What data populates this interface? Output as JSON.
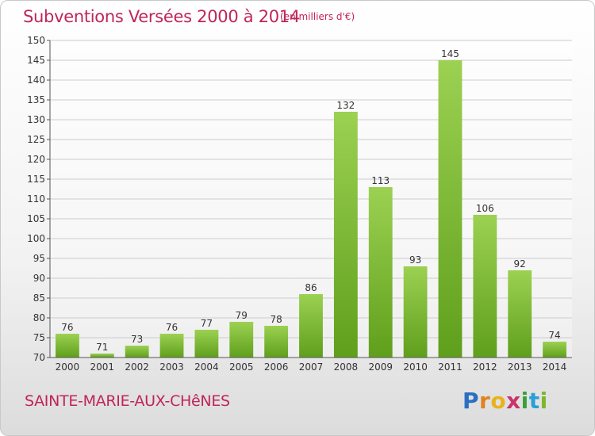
{
  "header": {
    "title": "Subventions Versées 2000 à 2014",
    "unit": "(en milliers d'€)"
  },
  "footer": {
    "town": "SAINTE-MARIE-AUX-CHêNES",
    "logo": [
      "P",
      "r",
      "o",
      "x",
      "i",
      "t",
      "i"
    ]
  },
  "colors": {
    "title": "#c0245c",
    "bar_top": "#9cd152",
    "bar_bottom": "#5f9f1c"
  },
  "chart_data": {
    "type": "bar",
    "title": "Subventions Versées 2000 à 2014",
    "subtitle": "(en milliers d'€)",
    "xlabel": "",
    "ylabel": "",
    "categories": [
      "2000",
      "2001",
      "2002",
      "2003",
      "2004",
      "2005",
      "2006",
      "2007",
      "2008",
      "2009",
      "2010",
      "2011",
      "2012",
      "2013",
      "2014"
    ],
    "values": [
      76,
      71,
      73,
      76,
      77,
      79,
      78,
      86,
      132,
      113,
      93,
      145,
      106,
      92,
      74
    ],
    "ylim": [
      70,
      150
    ],
    "yticks": [
      70,
      75,
      80,
      85,
      90,
      95,
      100,
      105,
      110,
      115,
      120,
      125,
      130,
      135,
      140,
      145,
      150
    ],
    "grid": true
  }
}
